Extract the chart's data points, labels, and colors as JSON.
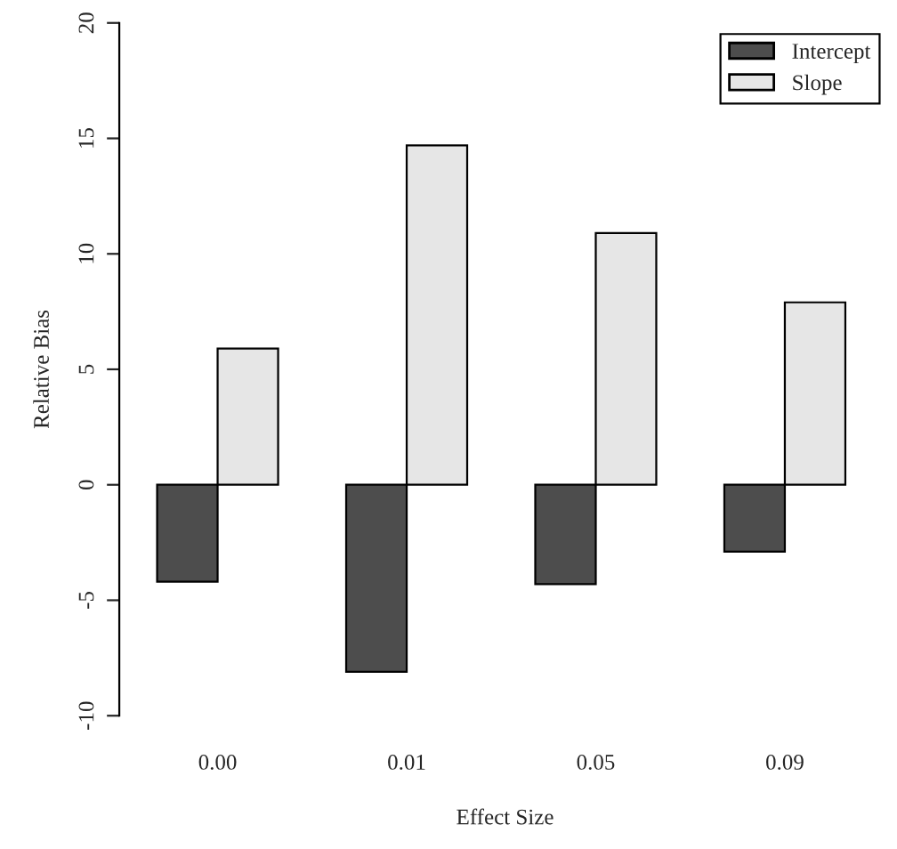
{
  "chart_data": {
    "type": "bar",
    "xlabel": "Effect Size",
    "ylabel": "Relative Bias",
    "categories": [
      "0.00",
      "0.01",
      "0.05",
      "0.09"
    ],
    "series": [
      {
        "name": "Intercept",
        "color": "#4d4d4d",
        "values": [
          -4.2,
          -8.1,
          -4.3,
          -2.9
        ]
      },
      {
        "name": "Slope",
        "color": "#e6e6e6",
        "values": [
          5.9,
          14.7,
          10.9,
          7.9
        ]
      }
    ],
    "ylim": [
      -10,
      20
    ],
    "yticks": [
      -10,
      -5,
      0,
      5,
      10,
      15,
      20
    ],
    "grid": false,
    "legend": "top right"
  }
}
